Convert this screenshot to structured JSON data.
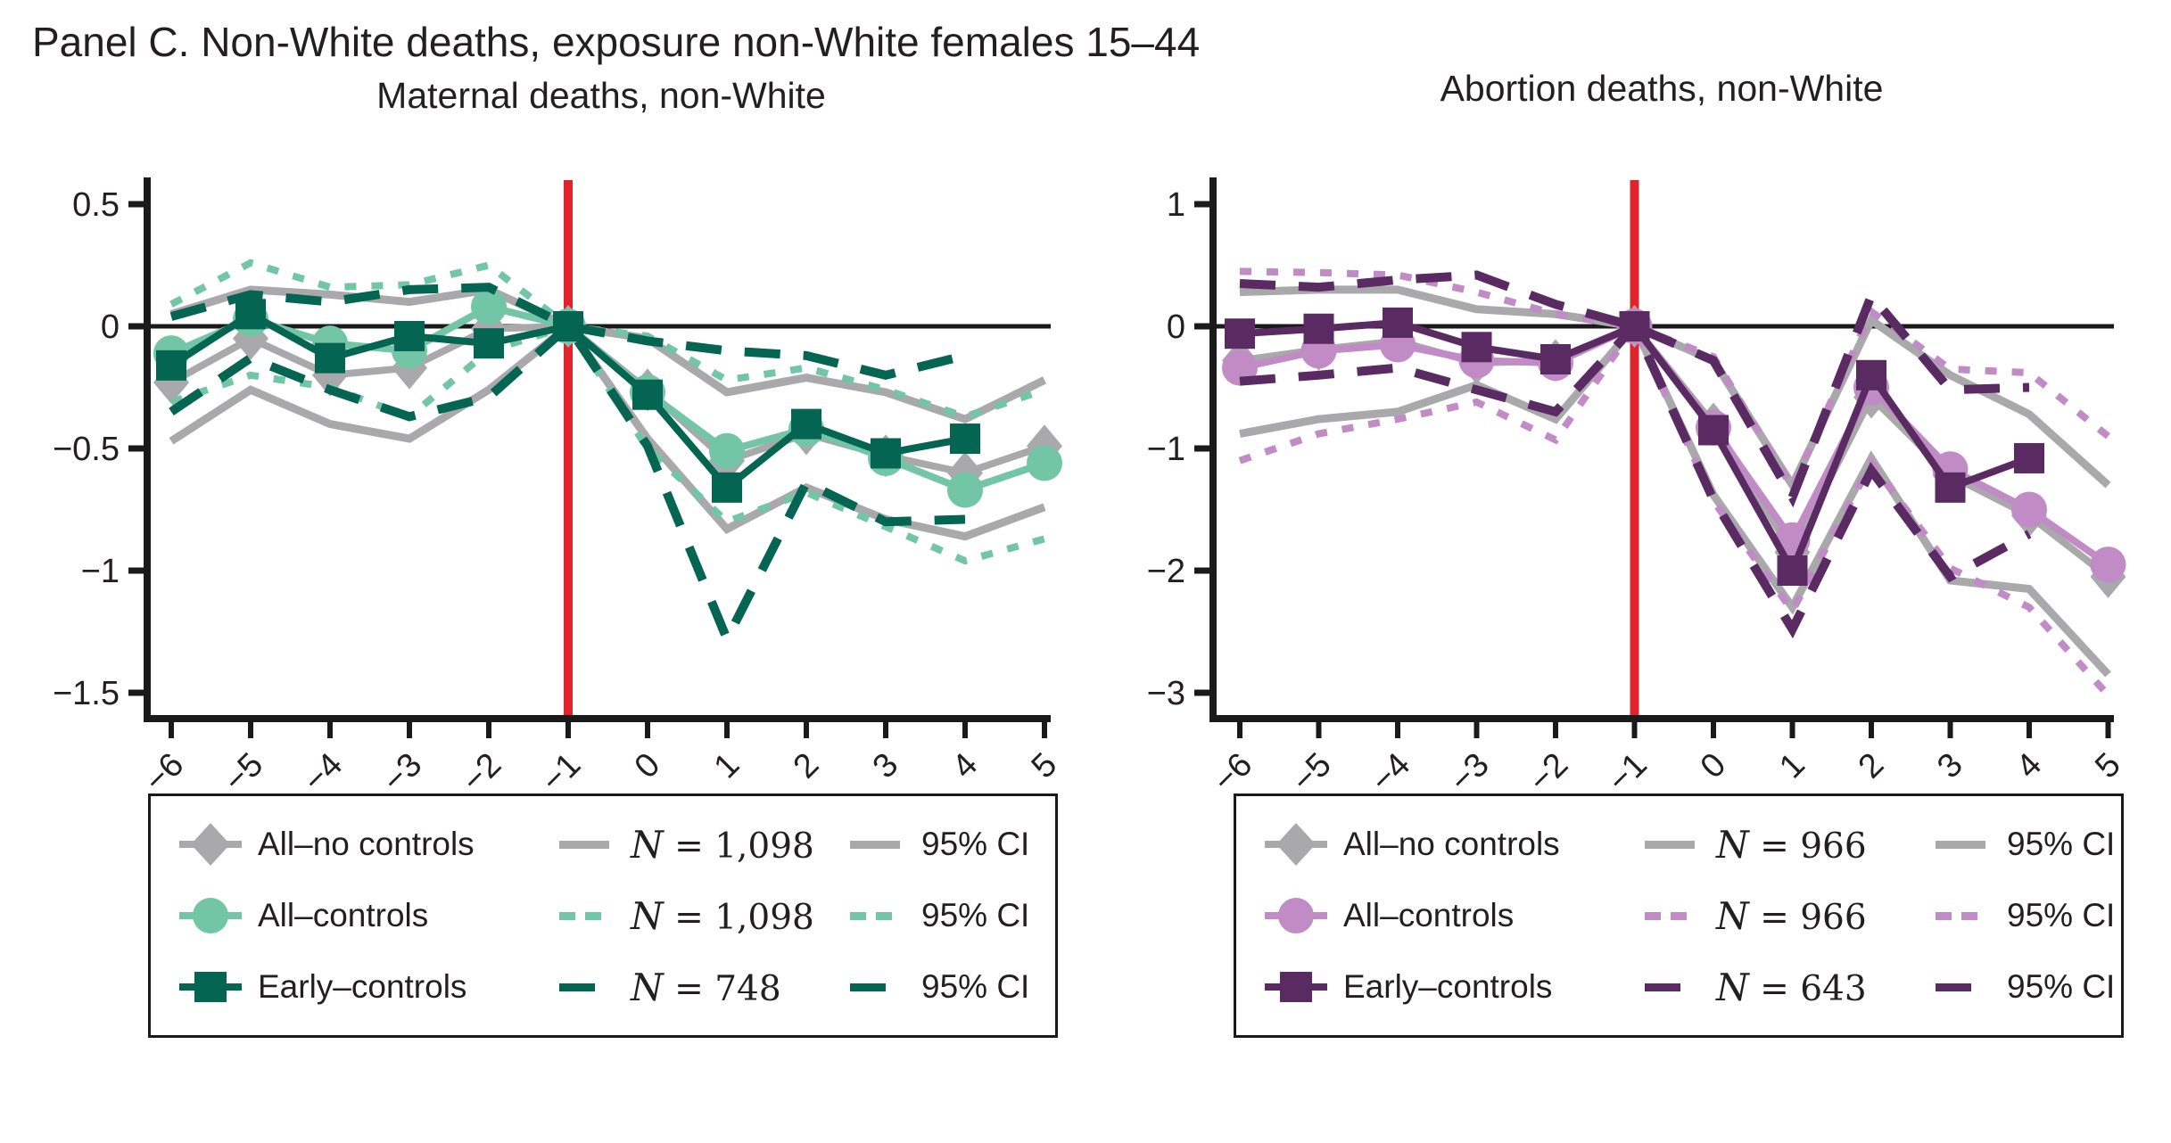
{
  "chart_data": {
    "type": "line",
    "panel_title": "Panel C. Non-White deaths, exposure non-White females 15–44",
    "colors": {
      "gray": "#A9A9AC",
      "teal": "#72C6A6",
      "dark_green": "#046552",
      "orchid": "#C18BC5",
      "dark_purple": "#5A2A63",
      "event_line": "#E1242B",
      "text": "#231F20",
      "axis": "#1a1a1a"
    },
    "legend_position": "bottom",
    "n_symbol": "N",
    "charts": [
      {
        "id": "maternal",
        "title": "Maternal deaths, non-White",
        "xlabel": "",
        "ylabel": "",
        "x": [
          -6,
          -5,
          -4,
          -3,
          -2,
          -1,
          0,
          1,
          2,
          3,
          4,
          5
        ],
        "xtick_labels": [
          "−6",
          "−5",
          "−4",
          "−3",
          "−2",
          "−1",
          "0",
          "1",
          "2",
          "3",
          "4",
          "5"
        ],
        "yticks": [
          0.5,
          0,
          -0.5,
          -1,
          -1.5
        ],
        "ytick_labels": [
          "0.5",
          "0",
          "−0.5",
          "−1",
          "−1.5"
        ],
        "ylim": [
          -1.59,
          0.6
        ],
        "event_line_x": -1,
        "zero_line": true,
        "grid": false,
        "series": [
          {
            "name": "All–no controls",
            "marker": "diamond",
            "color": "#A9A9AC",
            "ci_style": "solid",
            "n_text": "= 1,098",
            "ci_label": "95% CI",
            "values": [
              -0.23,
              -0.05,
              -0.2,
              -0.17,
              -0.01,
              0,
              -0.26,
              -0.55,
              -0.44,
              -0.53,
              -0.6,
              -0.49
            ],
            "ci_upper": [
              0.05,
              0.15,
              0.13,
              0.1,
              0.15,
              0,
              -0.05,
              -0.27,
              -0.21,
              -0.27,
              -0.38,
              -0.22
            ],
            "ci_lower": [
              -0.47,
              -0.26,
              -0.4,
              -0.46,
              -0.26,
              0,
              -0.46,
              -0.83,
              -0.66,
              -0.79,
              -0.86,
              -0.74
            ]
          },
          {
            "name": "All–controls",
            "marker": "circle",
            "color": "#72C6A6",
            "ci_style": "dotted",
            "n_text": "= 1,098",
            "ci_label": "95% CI",
            "values": [
              -0.11,
              0.03,
              -0.07,
              -0.1,
              0.08,
              0,
              -0.27,
              -0.51,
              -0.42,
              -0.54,
              -0.67,
              -0.56
            ],
            "ci_upper": [
              0.09,
              0.26,
              0.16,
              0.17,
              0.25,
              0,
              -0.04,
              -0.22,
              -0.17,
              -0.26,
              -0.37,
              -0.26
            ],
            "ci_lower": [
              -0.31,
              -0.2,
              -0.25,
              -0.37,
              -0.1,
              0,
              -0.5,
              -0.8,
              -0.68,
              -0.82,
              -0.96,
              -0.87
            ]
          },
          {
            "name": "Early–controls",
            "marker": "square",
            "color": "#046552",
            "ci_style": "longdash",
            "n_text": "= 748",
            "ci_label": "95% CI",
            "values": [
              -0.16,
              0.05,
              -0.13,
              -0.04,
              -0.07,
              0,
              -0.28,
              -0.66,
              -0.4,
              -0.52,
              -0.46,
              null
            ],
            "ci_upper": [
              0.04,
              0.13,
              0.1,
              0.15,
              0.16,
              0,
              -0.06,
              -0.1,
              -0.12,
              -0.2,
              -0.12,
              null
            ],
            "ci_lower": [
              -0.35,
              -0.13,
              -0.26,
              -0.37,
              -0.29,
              0,
              -0.49,
              -1.28,
              -0.64,
              -0.8,
              -0.79,
              null
            ]
          }
        ]
      },
      {
        "id": "abortion",
        "title": "Abortion deaths, non-White",
        "xlabel": "",
        "ylabel": "",
        "x": [
          -6,
          -5,
          -4,
          -3,
          -2,
          -1,
          0,
          1,
          2,
          3,
          4,
          5
        ],
        "xtick_labels": [
          "−6",
          "−5",
          "−4",
          "−3",
          "−2",
          "−1",
          "0",
          "1",
          "2",
          "3",
          "4",
          "5"
        ],
        "yticks": [
          1,
          0,
          -1,
          -2,
          -3
        ],
        "ytick_labels": [
          "1",
          "0",
          "−1",
          "−2",
          "−3"
        ],
        "ylim": [
          -3.18,
          1.2
        ],
        "event_line_x": -1,
        "zero_line": true,
        "grid": false,
        "series": [
          {
            "name": "All–no controls",
            "marker": "diamond",
            "color": "#A9A9AC",
            "ci_style": "solid",
            "n_text": "= 966",
            "ci_label": "95% CI",
            "values": [
              -0.28,
              -0.19,
              -0.12,
              -0.3,
              -0.28,
              0,
              -0.8,
              -1.85,
              -0.58,
              -1.22,
              -1.55,
              -2.05
            ],
            "ci_upper": [
              0.28,
              0.3,
              0.3,
              0.14,
              0.1,
              0,
              -0.28,
              -1.3,
              0.05,
              -0.4,
              -0.72,
              -1.3
            ],
            "ci_lower": [
              -0.88,
              -0.76,
              -0.7,
              -0.48,
              -0.76,
              0,
              -1.38,
              -2.3,
              -1.08,
              -2.08,
              -2.15,
              -2.85
            ]
          },
          {
            "name": "All–controls",
            "marker": "circle",
            "color": "#C18BC5",
            "ci_style": "dotted",
            "n_text": "= 966",
            "ci_label": "95% CI",
            "values": [
              -0.34,
              -0.2,
              -0.15,
              -0.28,
              -0.3,
              0,
              -0.83,
              -1.75,
              -0.5,
              -1.17,
              -1.5,
              -1.95
            ],
            "ci_upper": [
              0.45,
              0.44,
              0.42,
              0.28,
              0.1,
              0,
              -0.25,
              -1.32,
              0.12,
              -0.35,
              -0.38,
              -0.9
            ],
            "ci_lower": [
              -1.1,
              -0.88,
              -0.76,
              -0.62,
              -0.93,
              0,
              -1.43,
              -2.33,
              -1.12,
              -1.98,
              -2.3,
              -3.02
            ]
          },
          {
            "name": "Early–controls",
            "marker": "square",
            "color": "#5A2A63",
            "ci_style": "longdash",
            "n_text": "= 643",
            "ci_label": "95% CI",
            "values": [
              -0.06,
              -0.02,
              0.03,
              -0.17,
              -0.27,
              0,
              -0.85,
              -2.0,
              -0.4,
              -1.32,
              -1.08,
              null
            ],
            "ci_upper": [
              0.35,
              0.32,
              0.38,
              0.42,
              0.18,
              0,
              -0.28,
              -1.4,
              0.25,
              -0.52,
              -0.5,
              null
            ],
            "ci_lower": [
              -0.45,
              -0.4,
              -0.34,
              -0.52,
              -0.7,
              0,
              -1.42,
              -2.48,
              -1.18,
              -2.05,
              -1.7,
              null
            ]
          }
        ]
      }
    ]
  }
}
